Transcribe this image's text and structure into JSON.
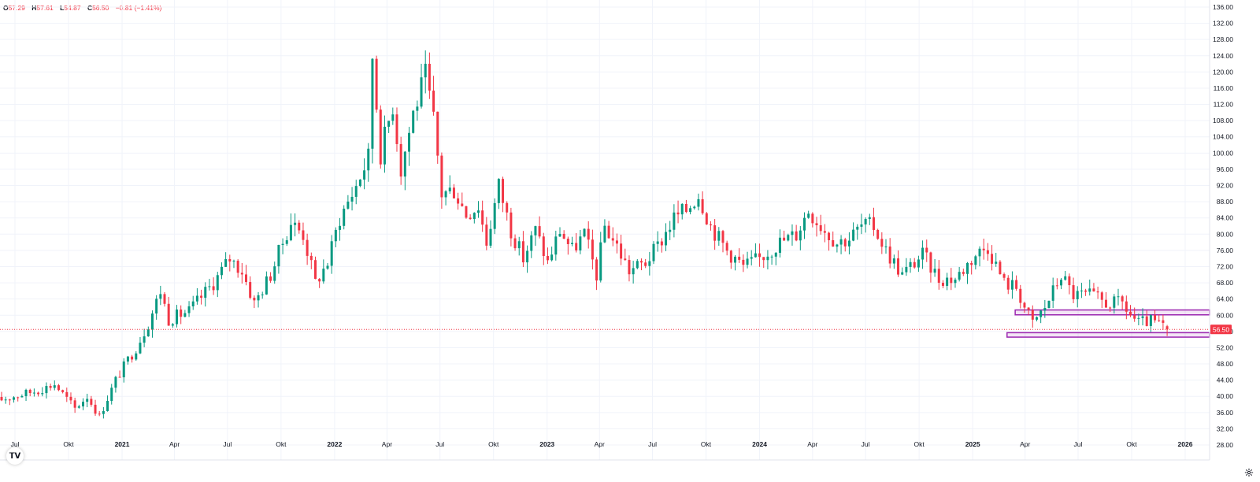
{
  "legend": {
    "open_label": "O",
    "open": "57.29",
    "high_label": "H",
    "high": "57.61",
    "low_label": "L",
    "low": "54.87",
    "close_label": "C",
    "close": "56.50",
    "change": "−0.81 (−1.41%)"
  },
  "colors": {
    "up": "#089981",
    "down": "#f23645",
    "grid": "#f0f3fa",
    "axis_text": "#131722",
    "zone": "#9c27b0",
    "price_tag": "#f23645"
  },
  "icons": {
    "logo": "tradingview-logo-icon",
    "settings": "gear-icon"
  },
  "logo_text": "𝗧𝗩",
  "chart_data": {
    "type": "candlestick",
    "interval": "weekly",
    "x_start": "2020-06",
    "x_end": "2026-01",
    "ylim": [
      25,
      137
    ],
    "y_ticks": [
      "136.00",
      "132.00",
      "128.00",
      "124.00",
      "120.00",
      "116.00",
      "112.00",
      "108.00",
      "104.00",
      "100.00",
      "96.00",
      "92.00",
      "88.00",
      "84.00",
      "80.00",
      "76.00",
      "72.00",
      "68.00",
      "64.00",
      "60.00",
      "56.00",
      "52.00",
      "48.00",
      "44.00",
      "40.00",
      "36.00",
      "32.00",
      "28.00"
    ],
    "x_ticks": [
      {
        "label": "Jul",
        "date": "2020-07",
        "bold": false
      },
      {
        "label": "Okt",
        "date": "2020-10",
        "bold": false
      },
      {
        "label": "2021",
        "date": "2021-01",
        "bold": true
      },
      {
        "label": "Apr",
        "date": "2021-04",
        "bold": false
      },
      {
        "label": "Jul",
        "date": "2021-07",
        "bold": false
      },
      {
        "label": "Okt",
        "date": "2021-10",
        "bold": false
      },
      {
        "label": "2022",
        "date": "2022-01",
        "bold": true
      },
      {
        "label": "Apr",
        "date": "2022-04",
        "bold": false
      },
      {
        "label": "Jul",
        "date": "2022-07",
        "bold": false
      },
      {
        "label": "Okt",
        "date": "2022-10",
        "bold": false
      },
      {
        "label": "2023",
        "date": "2023-01",
        "bold": true
      },
      {
        "label": "Apr",
        "date": "2023-04",
        "bold": false
      },
      {
        "label": "Jul",
        "date": "2023-07",
        "bold": false
      },
      {
        "label": "Okt",
        "date": "2023-10",
        "bold": false
      },
      {
        "label": "2024",
        "date": "2024-01",
        "bold": true
      },
      {
        "label": "Apr",
        "date": "2024-04",
        "bold": false
      },
      {
        "label": "Jul",
        "date": "2024-07",
        "bold": false
      },
      {
        "label": "Okt",
        "date": "2024-10",
        "bold": false
      },
      {
        "label": "2025",
        "date": "2025-01",
        "bold": true
      },
      {
        "label": "Apr",
        "date": "2025-04",
        "bold": false
      },
      {
        "label": "Jul",
        "date": "2025-07",
        "bold": false
      },
      {
        "label": "Okt",
        "date": "2025-10",
        "bold": false
      },
      {
        "label": "2026",
        "date": "2026-01",
        "bold": true
      }
    ],
    "last_price": 56.5,
    "last_price_label": "56.50",
    "zones": [
      {
        "name": "resistance-zone",
        "from_date": "2025-03-15",
        "top": 61.3,
        "bottom": 60.1
      },
      {
        "name": "support-zone",
        "from_date": "2025-03-01",
        "top": 55.7,
        "bottom": 54.6
      }
    ],
    "path_anchors": [
      [
        "2020-06-01",
        39
      ],
      [
        "2020-08-10",
        41.5
      ],
      [
        "2020-09-07",
        43
      ],
      [
        "2020-10-12",
        37
      ],
      [
        "2020-11-02",
        40
      ],
      [
        "2020-11-23",
        35
      ],
      [
        "2020-12-21",
        44
      ],
      [
        "2021-01-11",
        49
      ],
      [
        "2021-01-25",
        52
      ],
      [
        "2021-02-15",
        58
      ],
      [
        "2021-03-08",
        66
      ],
      [
        "2021-03-22",
        59
      ],
      [
        "2021-04-26",
        61
      ],
      [
        "2021-06-07",
        68
      ],
      [
        "2021-07-05",
        74
      ],
      [
        "2021-07-26",
        71
      ],
      [
        "2021-08-16",
        63
      ],
      [
        "2021-09-13",
        70
      ],
      [
        "2021-10-04",
        78
      ],
      [
        "2021-10-18",
        83
      ],
      [
        "2021-11-08",
        80
      ],
      [
        "2021-11-29",
        68
      ],
      [
        "2021-12-20",
        73
      ],
      [
        "2022-01-10",
        84
      ],
      [
        "2022-02-07",
        92
      ],
      [
        "2022-02-28",
        99
      ],
      [
        "2022-03-07",
        124
      ],
      [
        "2022-03-21",
        100
      ],
      [
        "2022-04-11",
        112
      ],
      [
        "2022-04-25",
        96
      ],
      [
        "2022-05-16",
        110
      ],
      [
        "2022-06-06",
        119
      ],
      [
        "2022-06-20",
        108
      ],
      [
        "2022-07-04",
        90
      ],
      [
        "2022-07-25",
        91
      ],
      [
        "2022-08-15",
        85
      ],
      [
        "2022-09-05",
        87
      ],
      [
        "2022-09-19",
        78
      ],
      [
        "2022-10-10",
        92
      ],
      [
        "2022-10-31",
        81
      ],
      [
        "2022-11-21",
        74
      ],
      [
        "2022-12-12",
        81
      ],
      [
        "2023-01-02",
        73
      ],
      [
        "2023-01-23",
        81
      ],
      [
        "2023-02-13",
        76
      ],
      [
        "2023-03-06",
        80
      ],
      [
        "2023-03-27",
        70
      ],
      [
        "2023-04-10",
        82
      ],
      [
        "2023-05-01",
        77
      ],
      [
        "2023-05-22",
        71
      ],
      [
        "2023-06-19",
        73
      ],
      [
        "2023-07-10",
        77
      ],
      [
        "2023-08-07",
        84
      ],
      [
        "2023-08-28",
        86
      ],
      [
        "2023-09-18",
        90
      ],
      [
        "2023-10-09",
        82
      ],
      [
        "2023-11-06",
        76
      ],
      [
        "2023-12-04",
        72
      ],
      [
        "2024-01-01",
        74
      ],
      [
        "2024-02-05",
        78
      ],
      [
        "2024-03-04",
        80
      ],
      [
        "2024-03-25",
        86
      ],
      [
        "2024-04-22",
        81
      ],
      [
        "2024-05-13",
        78
      ],
      [
        "2024-06-03",
        79
      ],
      [
        "2024-06-24",
        82
      ],
      [
        "2024-07-15",
        82
      ],
      [
        "2024-08-05",
        76
      ],
      [
        "2024-09-02",
        70
      ],
      [
        "2024-10-07",
        75
      ],
      [
        "2024-11-04",
        69
      ],
      [
        "2024-12-02",
        69
      ],
      [
        "2025-01-06",
        75
      ],
      [
        "2025-01-27",
        77
      ],
      [
        "2025-02-24",
        68
      ],
      [
        "2025-03-17",
        67
      ],
      [
        "2025-03-31",
        62
      ],
      [
        "2025-04-14",
        58
      ],
      [
        "2025-05-05",
        62
      ],
      [
        "2025-06-02",
        70
      ],
      [
        "2025-06-23",
        65
      ],
      [
        "2025-07-21",
        65
      ],
      [
        "2025-08-18",
        63
      ],
      [
        "2025-09-15",
        63
      ],
      [
        "2025-09-29",
        60
      ],
      [
        "2025-10-13",
        58
      ],
      [
        "2025-11-03",
        58.5
      ],
      [
        "2025-11-24",
        57.29
      ]
    ],
    "final_candle": {
      "date": "2025-12-01",
      "open": 57.29,
      "high": 57.61,
      "low": 54.87,
      "close": 56.5
    }
  }
}
